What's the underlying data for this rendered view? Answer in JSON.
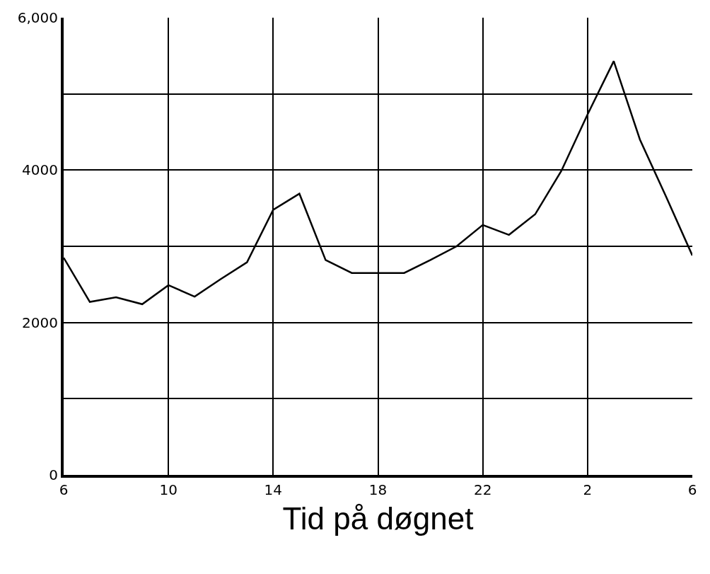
{
  "chart_data": {
    "type": "line",
    "xlabel": "Tid på døgnet",
    "categories": [
      "6",
      null,
      null,
      null,
      "10",
      null,
      null,
      null,
      "14",
      null,
      null,
      null,
      "18",
      null,
      null,
      null,
      "22",
      null,
      null,
      null,
      "2",
      null,
      null,
      null,
      "6"
    ],
    "series": [
      {
        "color": "#000000",
        "values": [
          2850,
          2270,
          2330,
          2240,
          2490,
          2340,
          2570,
          2790,
          3480,
          3690,
          2820,
          2650,
          2650,
          2650,
          2820,
          3000,
          3280,
          3150,
          3420,
          3990,
          4730,
          5430,
          4400,
          3650,
          2880
        ]
      }
    ],
    "ylim": [
      0,
      6000
    ],
    "yticks": [
      0,
      {
        "value": 1000,
        "label": null
      },
      {
        "value": 2000,
        "label": "2000"
      },
      {
        "value": 3000,
        "label": null
      },
      {
        "value": 4000,
        "label": "4000"
      },
      {
        "value": 5000,
        "label": null
      },
      {
        "value": 6000,
        "label": "6,000"
      }
    ],
    "grid": true,
    "marker": "none",
    "line_style": "solid"
  }
}
